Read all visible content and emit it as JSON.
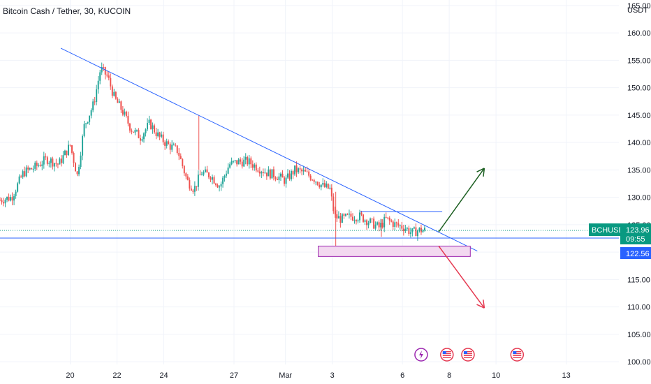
{
  "title": "Bitcoin Cash / Tether, 30, KUCOIN",
  "currency": "USDT",
  "colors": {
    "up": "#26a69a",
    "down": "#ef5350",
    "trendline": "#2962ff",
    "support": "#2962ff",
    "zone_fill": "#f3d9f0",
    "zone_stroke": "#9c27b0",
    "arrow_up": "#1b5e20",
    "arrow_down": "#e53950",
    "grid": "#f0f3fa",
    "last_price_bg": "#089981",
    "support_bg": "#2962ff"
  },
  "chart_data": {
    "type": "candlestick",
    "symbol": "BCHUSDT",
    "timeframe": "30",
    "exchange": "KUCOIN",
    "y_ticks": [
      100,
      105,
      110,
      115,
      120,
      125,
      130,
      135,
      140,
      145,
      150,
      155,
      160,
      165
    ],
    "y_tick_labels": [
      "100.00",
      "105.00",
      "110.00",
      "115.00",
      "120.00",
      "125.00",
      "130.00",
      "135.00",
      "140.00",
      "145.00",
      "150.00",
      "155.00",
      "160.00",
      "165.00"
    ],
    "ylim": [
      99.5,
      166
    ],
    "xlim": [
      0,
      26.45
    ],
    "x_ticks": [
      {
        "label": "20",
        "pos": 3.0
      },
      {
        "label": "22",
        "pos": 5.0
      },
      {
        "label": "24",
        "pos": 7.0
      },
      {
        "label": "27",
        "pos": 10.0
      },
      {
        "label": "Mar",
        "pos": 12.2
      },
      {
        "label": "3",
        "pos": 14.2
      },
      {
        "label": "6",
        "pos": 17.2
      },
      {
        "label": "8",
        "pos": 19.2
      },
      {
        "label": "10",
        "pos": 21.2
      },
      {
        "label": "13",
        "pos": 24.2
      }
    ],
    "last_price": {
      "symbol": "BCHUSDT",
      "price": "123.96",
      "value": 123.96,
      "countdown": "09:55"
    },
    "support_price": {
      "price": "122.56",
      "value": 122.56
    },
    "price_path": [
      [
        0.0,
        129.5
      ],
      [
        0.5,
        130.0
      ],
      [
        1.0,
        134.5
      ],
      [
        1.5,
        135.5
      ],
      [
        2.0,
        137.0
      ],
      [
        2.5,
        136.0
      ],
      [
        3.0,
        139.5
      ],
      [
        3.3,
        134.0
      ],
      [
        3.6,
        143.0
      ],
      [
        4.0,
        147.0
      ],
      [
        4.3,
        153.5
      ],
      [
        4.6,
        152.0
      ],
      [
        4.9,
        148.0
      ],
      [
        5.2,
        146.0
      ],
      [
        5.6,
        142.5
      ],
      [
        6.0,
        141.0
      ],
      [
        6.4,
        143.5
      ],
      [
        6.8,
        141.0
      ],
      [
        7.2,
        139.5
      ],
      [
        7.6,
        138.5
      ],
      [
        8.0,
        133.0
      ],
      [
        8.3,
        131.5
      ],
      [
        8.6,
        134.5
      ],
      [
        9.0,
        134.0
      ],
      [
        9.4,
        132.0
      ],
      [
        9.8,
        136.0
      ],
      [
        10.2,
        136.5
      ],
      [
        10.6,
        136.5
      ],
      [
        11.0,
        135.5
      ],
      [
        11.4,
        134.5
      ],
      [
        11.8,
        134.0
      ],
      [
        12.2,
        133.0
      ],
      [
        12.6,
        135.0
      ],
      [
        13.0,
        134.5
      ],
      [
        13.4,
        133.5
      ],
      [
        13.8,
        132.0
      ],
      [
        14.1,
        131.5
      ],
      [
        14.3,
        126.5
      ],
      [
        14.6,
        126.0
      ],
      [
        15.0,
        126.5
      ],
      [
        15.4,
        126.5
      ],
      [
        15.8,
        125.5
      ],
      [
        16.2,
        124.5
      ],
      [
        16.5,
        126.0
      ],
      [
        16.9,
        125.0
      ],
      [
        17.3,
        124.5
      ],
      [
        17.6,
        123.5
      ],
      [
        17.9,
        124.0
      ],
      [
        18.2,
        123.96
      ]
    ],
    "spikes": [
      {
        "x": 8.5,
        "open": 136.0,
        "close": 135.5,
        "high": 145.0,
        "low": 135.0
      },
      {
        "x": 14.35,
        "open": 131.0,
        "close": 126.0,
        "high": 131.0,
        "low": 119.5
      },
      {
        "x": 16.3,
        "open": 125.0,
        "close": 124.0,
        "high": 126.0,
        "low": 122.8
      }
    ],
    "trendline": {
      "x1": 2.6,
      "y1": 157.2,
      "x2": 20.4,
      "y2": 120.2
    },
    "support_line": {
      "y": 122.56
    },
    "resistance_segment": {
      "x1": 15.4,
      "x2": 18.9,
      "y": 127.4
    },
    "zone": {
      "x1": 13.6,
      "x2": 20.1,
      "y_top": 121.1,
      "y_bottom": 119.2
    },
    "arrow_up": {
      "x1": 18.75,
      "y1": 123.7,
      "x2": 20.7,
      "y2": 135.3
    },
    "arrow_down": {
      "x1": 18.75,
      "y1": 121.1,
      "x2": 20.7,
      "y2": 109.8
    },
    "event_markers": [
      {
        "x": 18.0,
        "kind": "lightning"
      },
      {
        "x": 19.1,
        "kind": "flag"
      },
      {
        "x": 20.0,
        "kind": "flag"
      },
      {
        "x": 22.1,
        "kind": "flag"
      }
    ]
  }
}
